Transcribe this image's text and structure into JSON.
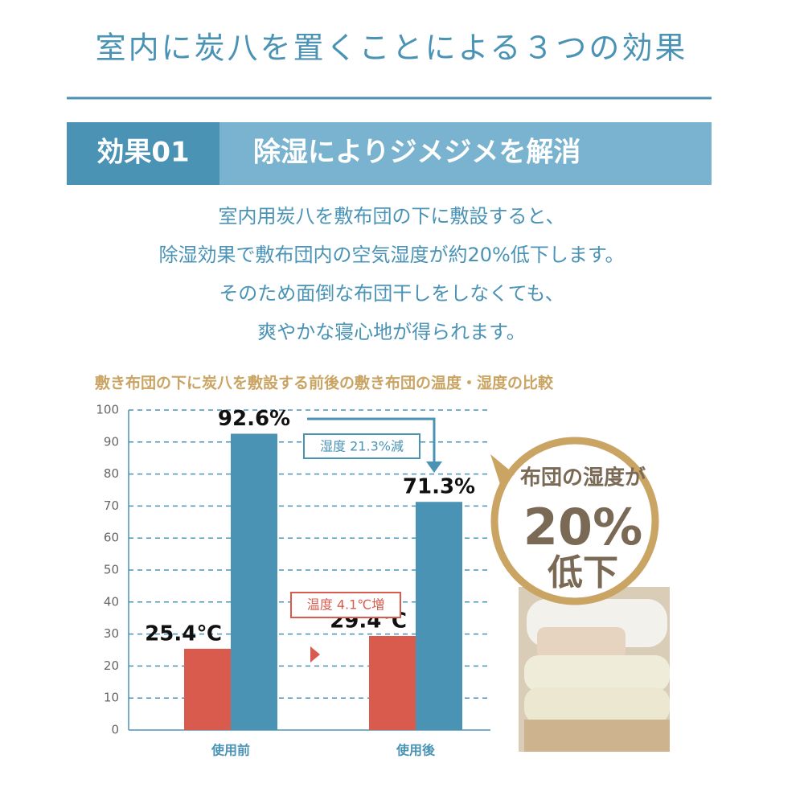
{
  "header": {
    "title": "室内に炭八を置くことによる３つの効果",
    "badge": "効果01",
    "heading": "除湿によりジメジメを解消",
    "body": [
      "室内用炭八を敷布団の下に敷設すると、",
      "除湿効果で敷布団内の空気湿度が約20%低下します。",
      "そのため面倒な布団干しをしなくても、",
      "爽やかな寝心地が得られます。"
    ]
  },
  "chart_data": {
    "type": "bar",
    "title": "敷き布団の下に炭八を敷設する前後の敷き布団の温度・湿度の比較",
    "categories": [
      "使用前",
      "使用後"
    ],
    "series": [
      {
        "color": "#d95b4e",
        "values": [
          25.4,
          29.4
        ],
        "value_labels": [
          "25.4℃",
          "29.4℃"
        ]
      },
      {
        "color": "#4a93b5",
        "values": [
          92.6,
          71.3
        ],
        "value_labels": [
          "92.6%",
          "71.3%"
        ]
      }
    ],
    "ylim": [
      0,
      100
    ],
    "yticks": [
      0,
      10,
      20,
      30,
      40,
      50,
      60,
      70,
      80,
      90,
      100
    ],
    "grid": true,
    "annotations": [
      "湿度 21.3%減",
      "温度 4.1℃増"
    ],
    "callout": [
      "布団の湿度が",
      "20%",
      "低下"
    ]
  }
}
